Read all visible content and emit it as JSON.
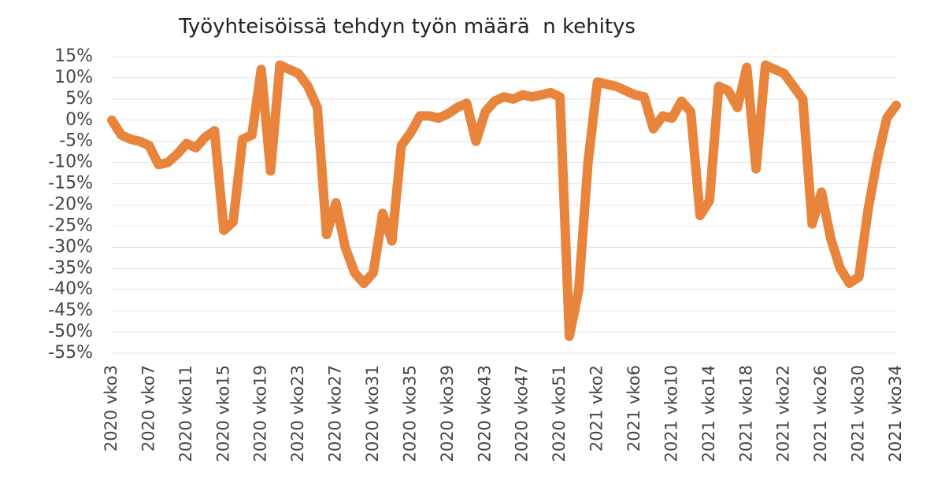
{
  "chart_data": {
    "type": "line",
    "title": "Työyhteisöissä tehdyn työn määrä  n kehitys",
    "categories": [
      "2020 vko3",
      null,
      null,
      null,
      "2020 vko7",
      null,
      null,
      null,
      "2020 vko11",
      null,
      null,
      null,
      "2020 vko15",
      null,
      null,
      null,
      "2020 vko19",
      null,
      null,
      null,
      "2020 vko23",
      null,
      null,
      null,
      "2020 vko27",
      null,
      null,
      null,
      "2020 vko31",
      null,
      null,
      null,
      "2020 vko35",
      null,
      null,
      null,
      "2020 vko39",
      null,
      null,
      null,
      "2020 vko43",
      null,
      null,
      null,
      "2020 vko47",
      null,
      null,
      null,
      "2020 vko51",
      null,
      null,
      null,
      "2021 vko2",
      null,
      null,
      null,
      "2021 vko6",
      null,
      null,
      null,
      "2021 vko10",
      null,
      null,
      null,
      "2021 vko14",
      null,
      null,
      null,
      "2021 vko18",
      null,
      null,
      null,
      "2021 vko22",
      null,
      null,
      null,
      "2021 vko26",
      null,
      null,
      null,
      "2021 vko30",
      null,
      null,
      null,
      "2021 vko34"
    ],
    "values": [
      0,
      -3.5,
      -4.5,
      -5,
      -6,
      -10.5,
      -10,
      -8,
      -5.5,
      -6.5,
      -4,
      -2.5,
      -26,
      -24,
      -4.5,
      -3.5,
      12,
      -12,
      13,
      12,
      11,
      8,
      3,
      -27,
      -19.5,
      -30,
      -36,
      -38.5,
      -36,
      -22,
      -28.5,
      -6,
      -3,
      1,
      1,
      0.5,
      1.5,
      3,
      4,
      -5,
      2,
      4.5,
      5.5,
      5,
      6,
      5.5,
      6,
      6.5,
      5.5,
      -51,
      -40,
      -10,
      9,
      8.5,
      8,
      7,
      6,
      5.5,
      -2,
      1,
      0.5,
      4.5,
      2,
      -22.5,
      -19,
      8,
      7,
      3,
      12.5,
      -11.5,
      13,
      12,
      11,
      8,
      5,
      -24.5,
      -17,
      -28,
      -35,
      -38.5,
      -37,
      -21,
      -9,
      0.5,
      3.5
    ],
    "color": "#e8843c",
    "ylim": [
      -55,
      15
    ],
    "yticks": [
      {
        "value": -55,
        "label": "-55%"
      },
      {
        "value": -50,
        "label": "-50%"
      },
      {
        "value": -45,
        "label": "-45%"
      },
      {
        "value": -40,
        "label": "-40%"
      },
      {
        "value": -35,
        "label": "-35%"
      },
      {
        "value": -30,
        "label": "-30%"
      },
      {
        "value": -25,
        "label": "-25%"
      },
      {
        "value": -20,
        "label": "-20%"
      },
      {
        "value": -15,
        "label": "-15%"
      },
      {
        "value": -10,
        "label": "-10%"
      },
      {
        "value": -5,
        "label": "-5%"
      },
      {
        "value": 0,
        "label": "0%"
      },
      {
        "value": 5,
        "label": "5%"
      },
      {
        "value": 10,
        "label": "10%"
      },
      {
        "value": 15,
        "label": "15%"
      }
    ],
    "grid": true
  }
}
